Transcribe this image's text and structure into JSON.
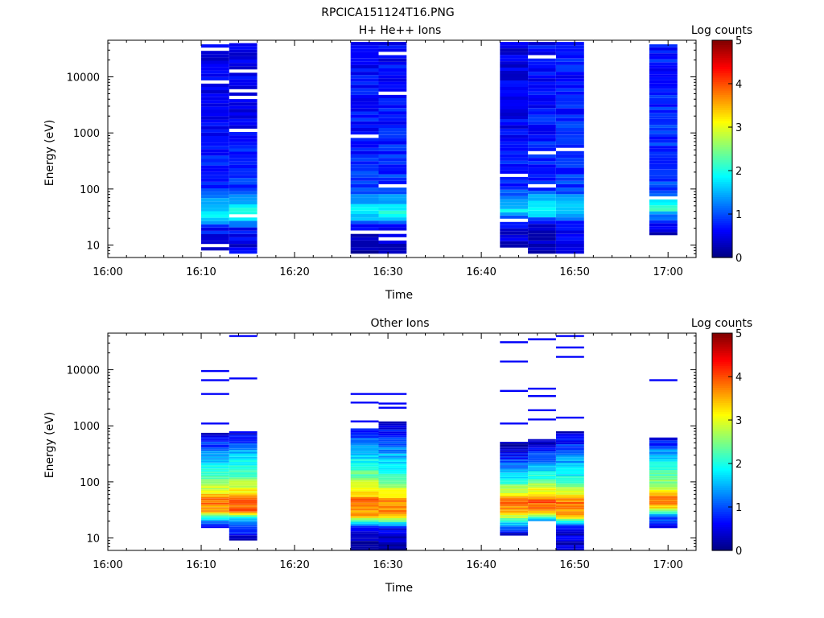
{
  "figure_title": "RPCICA151124T16.PNG",
  "chart_data": [
    {
      "type": "heatmap",
      "title": "H+ He++ Ions",
      "xlabel": "Time",
      "ylabel": "Energy (eV)",
      "y_scale": "log",
      "y_range": [
        6,
        45000
      ],
      "x_range_minutes": [
        0,
        63
      ],
      "x_ticks": [
        "16:00",
        "16:10",
        "16:20",
        "16:30",
        "16:40",
        "16:50",
        "17:00"
      ],
      "y_ticks": [
        "10",
        "100",
        "1000",
        "10000"
      ],
      "colorbar": {
        "title": "Log counts",
        "ticks": [
          "0",
          "1",
          "2",
          "3",
          "4",
          "5"
        ],
        "range": [
          0,
          5
        ],
        "colormap": "jet"
      },
      "columns": [
        {
          "t_start": "16:10",
          "t_end": "16:13",
          "e_min": 7,
          "e_max": 38000,
          "profile": [
            [
              10,
              0.5
            ],
            [
              20,
              0.7
            ],
            [
              35,
              1.9
            ],
            [
              50,
              1.5
            ],
            [
              100,
              0.8
            ],
            [
              1000,
              0.6
            ],
            [
              38000,
              0.5
            ]
          ]
        },
        {
          "t_start": "16:13",
          "t_end": "16:16",
          "e_min": 7,
          "e_max": 40000,
          "profile": [
            [
              10,
              0.5
            ],
            [
              20,
              0.7
            ],
            [
              35,
              2.2
            ],
            [
              50,
              1.8
            ],
            [
              100,
              0.9
            ],
            [
              1000,
              0.6
            ],
            [
              40000,
              0.5
            ]
          ]
        },
        {
          "t_start": "16:26",
          "t_end": "16:29",
          "e_min": 7,
          "e_max": 42000,
          "profile": [
            [
              10,
              0.3
            ],
            [
              20,
              0.5
            ],
            [
              35,
              1.8
            ],
            [
              50,
              1.6
            ],
            [
              100,
              0.9
            ],
            [
              1000,
              0.7
            ],
            [
              42000,
              0.6
            ]
          ]
        },
        {
          "t_start": "16:29",
          "t_end": "16:32",
          "e_min": 7,
          "e_max": 42000,
          "profile": [
            [
              10,
              0.3
            ],
            [
              20,
              0.5
            ],
            [
              35,
              1.9
            ],
            [
              50,
              1.7
            ],
            [
              100,
              0.9
            ],
            [
              1000,
              0.7
            ],
            [
              42000,
              0.6
            ]
          ]
        },
        {
          "t_start": "16:42",
          "t_end": "16:45",
          "e_min": 9,
          "e_max": 42000,
          "profile": [
            [
              10,
              0.3
            ],
            [
              25,
              0.6
            ],
            [
              40,
              1.8
            ],
            [
              60,
              1.4
            ],
            [
              100,
              0.8
            ],
            [
              1000,
              0.6
            ],
            [
              42000,
              0.5
            ]
          ]
        },
        {
          "t_start": "16:45",
          "t_end": "16:48",
          "e_min": 7,
          "e_max": 42000,
          "profile": [
            [
              10,
              0.2
            ],
            [
              25,
              0.6
            ],
            [
              40,
              2.0
            ],
            [
              60,
              1.6
            ],
            [
              100,
              0.9
            ],
            [
              1000,
              0.7
            ],
            [
              42000,
              0.6
            ]
          ]
        },
        {
          "t_start": "16:48",
          "t_end": "16:51",
          "e_min": 7,
          "e_max": 42000,
          "profile": [
            [
              10,
              0.4
            ],
            [
              25,
              0.7
            ],
            [
              40,
              1.8
            ],
            [
              60,
              1.5
            ],
            [
              100,
              0.9
            ],
            [
              1000,
              0.8
            ],
            [
              42000,
              0.7
            ]
          ]
        },
        {
          "t_start": "16:58",
          "t_end": "17:01",
          "e_min": 15,
          "e_max": 38000,
          "profile": [
            [
              15,
              0.3
            ],
            [
              30,
              1.0
            ],
            [
              45,
              2.2
            ],
            [
              70,
              1.5
            ],
            [
              100,
              1.0
            ],
            [
              1000,
              0.8
            ],
            [
              38000,
              0.7
            ]
          ]
        }
      ]
    },
    {
      "type": "heatmap",
      "title": "Other Ions",
      "xlabel": "Time",
      "ylabel": "Energy (eV)",
      "y_scale": "log",
      "y_range": [
        6,
        45000
      ],
      "x_range_minutes": [
        0,
        63
      ],
      "x_ticks": [
        "16:00",
        "16:10",
        "16:20",
        "16:30",
        "16:40",
        "16:50",
        "17:00"
      ],
      "y_ticks": [
        "10",
        "100",
        "1000",
        "10000"
      ],
      "colorbar": {
        "title": "Log counts",
        "ticks": [
          "0",
          "1",
          "2",
          "3",
          "4",
          "5"
        ],
        "range": [
          0,
          5
        ],
        "colormap": "jet"
      },
      "columns": [
        {
          "t_start": "16:10",
          "t_end": "16:13",
          "e_min": 15,
          "e_max": 750,
          "profile": [
            [
              15,
              0.4
            ],
            [
              20,
              1.2
            ],
            [
              30,
              3.5
            ],
            [
              45,
              3.9
            ],
            [
              70,
              3.0
            ],
            [
              120,
              2.3
            ],
            [
              300,
              1.4
            ],
            [
              750,
              0.4
            ]
          ],
          "lines": [
            1100,
            3700,
            6500,
            9500
          ]
        },
        {
          "t_start": "16:13",
          "t_end": "16:16",
          "e_min": 9,
          "e_max": 800,
          "profile": [
            [
              9,
              0.3
            ],
            [
              20,
              1.2
            ],
            [
              30,
              3.8
            ],
            [
              45,
              4.1
            ],
            [
              70,
              3.1
            ],
            [
              120,
              2.4
            ],
            [
              300,
              1.6
            ],
            [
              800,
              0.4
            ]
          ],
          "lines": [
            7000,
            40000
          ]
        },
        {
          "t_start": "16:26",
          "t_end": "16:29",
          "e_min": 6,
          "e_max": 900,
          "profile": [
            [
              6,
              0.2
            ],
            [
              15,
              0.5
            ],
            [
              25,
              3.5
            ],
            [
              45,
              3.9
            ],
            [
              70,
              3.1
            ],
            [
              120,
              2.5
            ],
            [
              300,
              1.6
            ],
            [
              900,
              0.6
            ]
          ],
          "lines": [
            1200,
            2600,
            3700
          ]
        },
        {
          "t_start": "16:29",
          "t_end": "16:32",
          "e_min": 6,
          "e_max": 1200,
          "profile": [
            [
              6,
              0.2
            ],
            [
              15,
              0.5
            ],
            [
              25,
              3.6
            ],
            [
              45,
              3.7
            ],
            [
              70,
              3.0
            ],
            [
              120,
              2.3
            ],
            [
              300,
              1.5
            ],
            [
              1200,
              0.3
            ]
          ],
          "lines": [
            2100,
            2500,
            3700
          ]
        },
        {
          "t_start": "16:42",
          "t_end": "16:45",
          "e_min": 11,
          "e_max": 520,
          "profile": [
            [
              11,
              0.2
            ],
            [
              20,
              2.0
            ],
            [
              30,
              3.7
            ],
            [
              45,
              3.8
            ],
            [
              70,
              2.8
            ],
            [
              120,
              1.8
            ],
            [
              300,
              0.6
            ],
            [
              520,
              0.2
            ]
          ],
          "lines": [
            1100,
            4200,
            14000,
            31000
          ]
        },
        {
          "t_start": "16:45",
          "t_end": "16:48",
          "e_min": 20,
          "e_max": 580,
          "profile": [
            [
              20,
              1.0
            ],
            [
              30,
              3.6
            ],
            [
              45,
              4.0
            ],
            [
              70,
              3.1
            ],
            [
              120,
              2.1
            ],
            [
              300,
              1.0
            ],
            [
              580,
              0.2
            ]
          ],
          "lines": [
            1300,
            1900,
            3400,
            4600,
            35000
          ]
        },
        {
          "t_start": "16:48",
          "t_end": "16:51",
          "e_min": 6,
          "e_max": 800,
          "profile": [
            [
              6,
              0.3
            ],
            [
              15,
              0.5
            ],
            [
              25,
              3.5
            ],
            [
              45,
              3.8
            ],
            [
              70,
              2.8
            ],
            [
              120,
              2.0
            ],
            [
              300,
              1.2
            ],
            [
              800,
              0.3
            ]
          ],
          "lines": [
            1400,
            17000,
            25000,
            40000
          ]
        },
        {
          "t_start": "16:58",
          "t_end": "17:01",
          "e_min": 15,
          "e_max": 620,
          "profile": [
            [
              15,
              0.5
            ],
            [
              25,
              1.2
            ],
            [
              35,
              3.4
            ],
            [
              50,
              3.9
            ],
            [
              70,
              3.0
            ],
            [
              120,
              2.4
            ],
            [
              300,
              1.6
            ],
            [
              620,
              0.4
            ]
          ],
          "lines": [
            6500
          ]
        }
      ]
    }
  ]
}
